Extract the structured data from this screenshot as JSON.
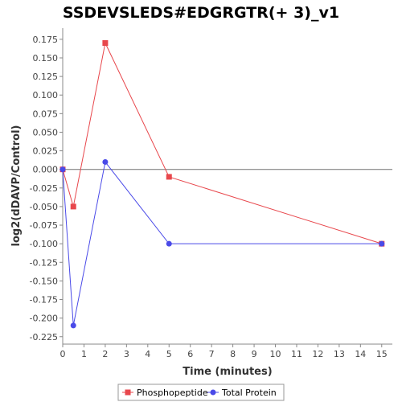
{
  "chart_data": {
    "type": "line",
    "title": "SSDEVSLEDS#EDGRGTR(+ 3)_v1",
    "xlabel": "Time (minutes)",
    "ylabel": "log2(dDAVP/Control)",
    "xlim": [
      0,
      15.5
    ],
    "ylim": [
      -0.235,
      0.19
    ],
    "x_ticks": [
      "0",
      "1",
      "2",
      "3",
      "4",
      "5",
      "6",
      "7",
      "8",
      "9",
      "10",
      "11",
      "12",
      "13",
      "14",
      "15"
    ],
    "y_ticks": [
      "0.175",
      "0.150",
      "0.125",
      "0.100",
      "0.075",
      "0.050",
      "0.025",
      "0.000",
      "-0.025",
      "-0.050",
      "-0.075",
      "-0.100",
      "-0.125",
      "-0.150",
      "-0.175",
      "-0.200",
      "-0.225"
    ],
    "zero_line": true,
    "grid": false,
    "legend_position": "bottom",
    "series": [
      {
        "name": "Phosphopeptide",
        "color": "#e8474c",
        "marker": "square",
        "x": [
          0,
          0.5,
          2,
          5,
          15
        ],
        "y": [
          0.0,
          -0.05,
          0.17,
          -0.01,
          -0.1
        ]
      },
      {
        "name": "Total Protein",
        "color": "#4a4ae8",
        "marker": "circle",
        "x": [
          0,
          0.5,
          2,
          5,
          15
        ],
        "y": [
          0.0,
          -0.21,
          0.01,
          -0.1,
          -0.1
        ]
      }
    ]
  }
}
